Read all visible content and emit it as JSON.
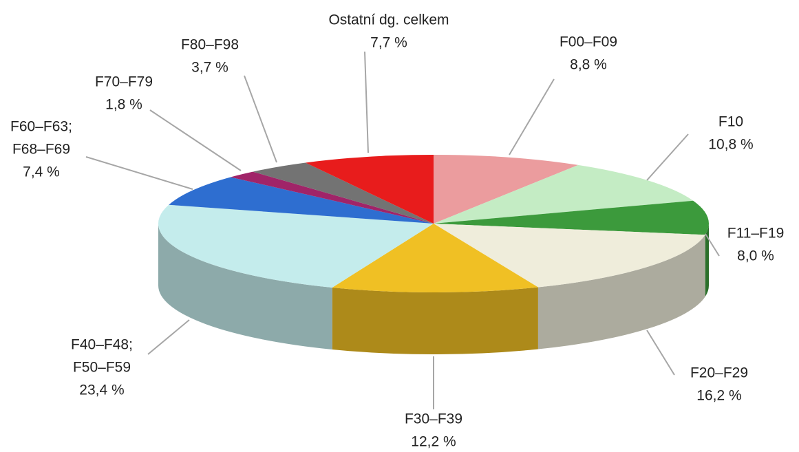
{
  "chart_data": {
    "type": "pie3d",
    "categories": [
      [
        "F00–F09"
      ],
      [
        "F10"
      ],
      [
        "F11–F19"
      ],
      [
        "F20–F29"
      ],
      [
        "F30–F39"
      ],
      [
        "F40–F48;",
        "F50–F59"
      ],
      [
        "F60–F63;",
        "F68–F69"
      ],
      [
        "F70–F79"
      ],
      [
        "F80–F98"
      ],
      [
        "Ostatní dg. celkem"
      ]
    ],
    "values": [
      8.8,
      10.8,
      8.0,
      16.2,
      12.2,
      23.4,
      7.4,
      1.8,
      3.7,
      7.7
    ],
    "value_labels": [
      "8,8 %",
      "10,8 %",
      "8,0 %",
      "16,2 %",
      "12,2 %",
      "23,4 %",
      "7,4 %",
      "1,8 %",
      "3,7 %",
      "7,7 %"
    ],
    "colors": [
      "#eb9c9e",
      "#c4ecc4",
      "#3c9a3c",
      "#efeddb",
      "#f0c024",
      "#c4ecec",
      "#2e6ed0",
      "#a02468",
      "#737373",
      "#e81c1c"
    ]
  }
}
